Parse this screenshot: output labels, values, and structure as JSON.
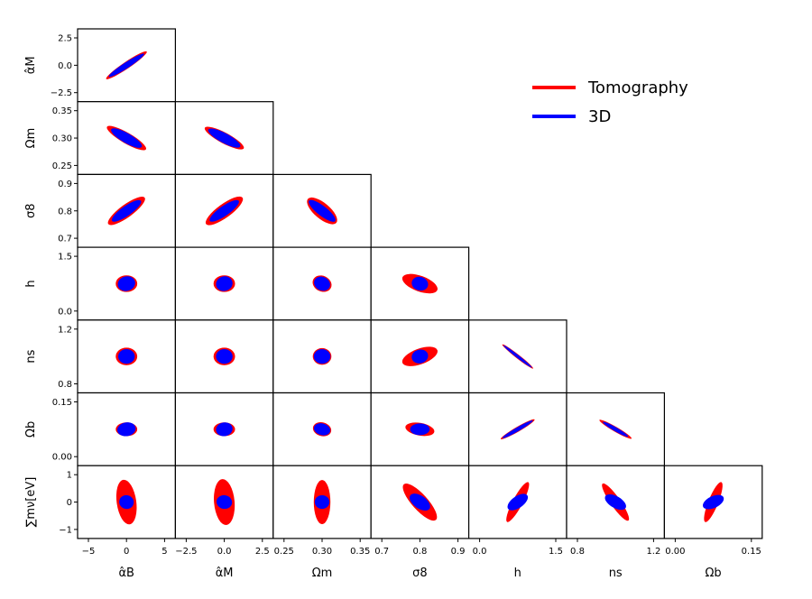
{
  "chart_data": {
    "type": "corner",
    "parameters": [
      {
        "label": "α̂_B",
        "x_label": "α̂B",
        "x_ticks": [
          "−5",
          "0",
          "5"
        ],
        "y_label": null
      },
      {
        "label": "α̂_M",
        "x_label": "α̂M",
        "x_ticks": [
          "−2.5",
          "0.0",
          "2.5"
        ],
        "y_label": "α̂M",
        "y_ticks": [
          "2.5",
          "0.0",
          "−2.5"
        ]
      },
      {
        "label": "Ω_m",
        "x_label": "Ωm",
        "x_ticks": [
          "0.25",
          "0.30",
          "0.35"
        ],
        "y_label": "Ωm",
        "y_ticks": [
          "0.35",
          "0.30",
          "0.25"
        ]
      },
      {
        "label": "σ_8",
        "x_label": "σ8",
        "x_ticks": [
          "0.7",
          "0.8",
          "0.9"
        ],
        "y_label": "σ8",
        "y_ticks": [
          "0.9",
          "0.8",
          "0.7"
        ]
      },
      {
        "label": "h",
        "x_label": "h",
        "x_ticks": [
          "0.0",
          "1.5"
        ],
        "y_label": "h",
        "y_ticks": [
          "1.5",
          "0.0"
        ]
      },
      {
        "label": "n_s",
        "x_label": "ns",
        "x_ticks": [
          "0.8",
          "1.2"
        ],
        "y_label": "ns",
        "y_ticks": [
          "1.2",
          "0.8"
        ]
      },
      {
        "label": "Ω_b",
        "x_label": "Ωb",
        "x_ticks": [
          "0.00",
          "0.15"
        ],
        "y_label": "Ωb",
        "y_ticks": [
          "0.15",
          "0.00"
        ]
      },
      {
        "label": "Σm_ν[eV]",
        "x_label": null,
        "y_label": "∑mν[eV]",
        "y_ticks": [
          "1",
          "0",
          "−1"
        ]
      }
    ],
    "series": [
      {
        "name": "Tomography",
        "color": "#ff0000"
      },
      {
        "name": "3D",
        "color": "#0000ff"
      }
    ],
    "legend_position": "top-right",
    "ellipses": [
      {
        "row": 1,
        "col": 0,
        "tomography": {
          "rx": 0.5,
          "ry": 0.07,
          "rot": -34
        },
        "threeD": {
          "rx": 0.43,
          "ry": 0.06,
          "rot": -33
        }
      },
      {
        "row": 2,
        "col": 0,
        "tomography": {
          "rx": 0.46,
          "ry": 0.11,
          "rot": 30
        },
        "threeD": {
          "rx": 0.36,
          "ry": 0.1,
          "rot": 30
        }
      },
      {
        "row": 2,
        "col": 1,
        "tomography": {
          "rx": 0.45,
          "ry": 0.11,
          "rot": 28
        },
        "threeD": {
          "rx": 0.37,
          "ry": 0.1,
          "rot": 28
        }
      },
      {
        "row": 3,
        "col": 0,
        "tomography": {
          "rx": 0.46,
          "ry": 0.13,
          "rot": -36
        },
        "threeD": {
          "rx": 0.36,
          "ry": 0.1,
          "rot": -35
        }
      },
      {
        "row": 3,
        "col": 1,
        "tomography": {
          "rx": 0.46,
          "ry": 0.14,
          "rot": -36
        },
        "threeD": {
          "rx": 0.36,
          "ry": 0.1,
          "rot": -35
        }
      },
      {
        "row": 3,
        "col": 2,
        "tomography": {
          "rx": 0.38,
          "ry": 0.16,
          "rot": 40
        },
        "threeD": {
          "rx": 0.34,
          "ry": 0.1,
          "rot": 38
        }
      },
      {
        "row": 4,
        "col": 0,
        "tomography": {
          "rx": 0.22,
          "ry": 0.17,
          "rot": 0
        },
        "threeD": {
          "rx": 0.18,
          "ry": 0.15,
          "rot": -15
        }
      },
      {
        "row": 4,
        "col": 1,
        "tomography": {
          "rx": 0.22,
          "ry": 0.17,
          "rot": 0
        },
        "threeD": {
          "rx": 0.17,
          "ry": 0.15,
          "rot": -15
        }
      },
      {
        "row": 4,
        "col": 2,
        "tomography": {
          "rx": 0.2,
          "ry": 0.16,
          "rot": 25
        },
        "threeD": {
          "rx": 0.17,
          "ry": 0.14,
          "rot": 25
        }
      },
      {
        "row": 4,
        "col": 3,
        "tomography": {
          "rx": 0.38,
          "ry": 0.16,
          "rot": 20
        },
        "threeD": {
          "rx": 0.17,
          "ry": 0.14,
          "rot": 15
        }
      },
      {
        "row": 5,
        "col": 0,
        "tomography": {
          "rx": 0.22,
          "ry": 0.18,
          "rot": 0
        },
        "threeD": {
          "rx": 0.17,
          "ry": 0.15,
          "rot": 0
        }
      },
      {
        "row": 5,
        "col": 1,
        "tomography": {
          "rx": 0.22,
          "ry": 0.18,
          "rot": 0
        },
        "threeD": {
          "rx": 0.17,
          "ry": 0.15,
          "rot": 0
        }
      },
      {
        "row": 5,
        "col": 2,
        "tomography": {
          "rx": 0.19,
          "ry": 0.17,
          "rot": 0
        },
        "threeD": {
          "rx": 0.17,
          "ry": 0.15,
          "rot": 0
        }
      },
      {
        "row": 5,
        "col": 3,
        "tomography": {
          "rx": 0.38,
          "ry": 0.16,
          "rot": -20
        },
        "threeD": {
          "rx": 0.17,
          "ry": 0.14,
          "rot": -15
        }
      },
      {
        "row": 5,
        "col": 4,
        "tomography": {
          "rx": 0.4,
          "ry": 0.04,
          "rot": 38
        },
        "threeD": {
          "rx": 0.37,
          "ry": 0.03,
          "rot": 38
        }
      },
      {
        "row": 6,
        "col": 0,
        "tomography": {
          "rx": 0.22,
          "ry": 0.14,
          "rot": 0
        },
        "threeD": {
          "rx": 0.19,
          "ry": 0.14,
          "rot": -10
        }
      },
      {
        "row": 6,
        "col": 1,
        "tomography": {
          "rx": 0.22,
          "ry": 0.14,
          "rot": 0
        },
        "threeD": {
          "rx": 0.17,
          "ry": 0.14,
          "rot": -10
        }
      },
      {
        "row": 6,
        "col": 2,
        "tomography": {
          "rx": 0.19,
          "ry": 0.14,
          "rot": 15
        },
        "threeD": {
          "rx": 0.17,
          "ry": 0.12,
          "rot": 15
        }
      },
      {
        "row": 6,
        "col": 3,
        "tomography": {
          "rx": 0.3,
          "ry": 0.13,
          "rot": 10
        },
        "threeD": {
          "rx": 0.2,
          "ry": 0.12,
          "rot": 0
        }
      },
      {
        "row": 6,
        "col": 4,
        "tomography": {
          "rx": 0.4,
          "ry": 0.05,
          "rot": -30
        },
        "threeD": {
          "rx": 0.36,
          "ry": 0.04,
          "rot": -30
        }
      },
      {
        "row": 6,
        "col": 5,
        "tomography": {
          "rx": 0.38,
          "ry": 0.05,
          "rot": 30
        },
        "threeD": {
          "rx": 0.3,
          "ry": 0.04,
          "rot": 30
        }
      },
      {
        "row": 7,
        "col": 0,
        "tomography": {
          "rx": 0.2,
          "ry": 0.46,
          "rot": -8
        },
        "threeD": {
          "rx": 0.15,
          "ry": 0.14,
          "rot": 15
        }
      },
      {
        "row": 7,
        "col": 1,
        "tomography": {
          "rx": 0.21,
          "ry": 0.47,
          "rot": -5
        },
        "threeD": {
          "rx": 0.16,
          "ry": 0.14,
          "rot": 10
        }
      },
      {
        "row": 7,
        "col": 2,
        "tomography": {
          "rx": 0.17,
          "ry": 0.45,
          "rot": 0
        },
        "threeD": {
          "rx": 0.15,
          "ry": 0.14,
          "rot": 0
        }
      },
      {
        "row": 7,
        "col": 3,
        "tomography": {
          "rx": 0.49,
          "ry": 0.16,
          "rot": 48
        },
        "threeD": {
          "rx": 0.24,
          "ry": 0.13,
          "rot": 35
        }
      },
      {
        "row": 7,
        "col": 4,
        "tomography": {
          "rx": 0.46,
          "ry": 0.1,
          "rot": -62
        },
        "threeD": {
          "rx": 0.24,
          "ry": 0.12,
          "rot": -35
        }
      },
      {
        "row": 7,
        "col": 5,
        "tomography": {
          "rx": 0.46,
          "ry": 0.1,
          "rot": 55
        },
        "threeD": {
          "rx": 0.24,
          "ry": 0.12,
          "rot": 30
        }
      },
      {
        "row": 7,
        "col": 6,
        "tomography": {
          "rx": 0.44,
          "ry": 0.1,
          "rot": -68
        },
        "threeD": {
          "rx": 0.23,
          "ry": 0.12,
          "rot": -25
        }
      }
    ]
  }
}
